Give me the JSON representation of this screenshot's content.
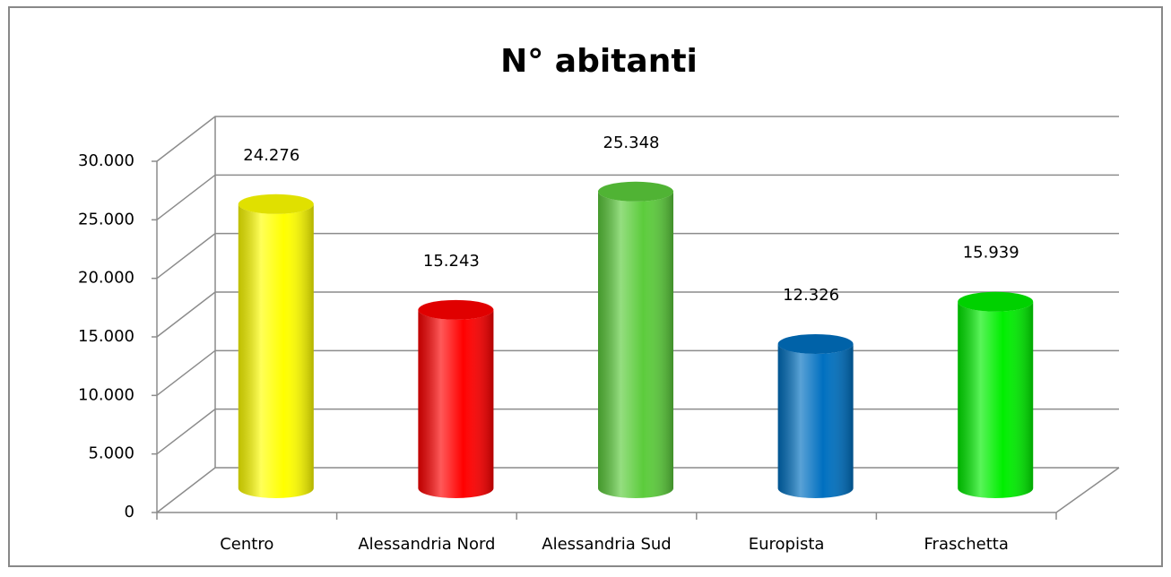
{
  "chart_data": {
    "type": "bar3d",
    "title": "N° abitanti",
    "categories": [
      "Centro",
      "Alessandria Nord",
      "Alessandria Sud",
      "Europista",
      "Fraschetta"
    ],
    "values": [
      24276,
      15243,
      25348,
      12326,
      15939
    ],
    "value_labels": [
      "24.276",
      "15.243",
      "25.348",
      "12.326",
      "15.939"
    ],
    "colors": [
      "#ffff00",
      "#ff0000",
      "#5ccc3c",
      "#0070c0",
      "#00ee00"
    ],
    "ylim": [
      0,
      30000
    ],
    "yticks": [
      0,
      {
        "value": 5000,
        "label": "5.000"
      },
      {
        "value": 10000,
        "label": "10.000"
      },
      {
        "value": 15000,
        "label": "15.000"
      },
      {
        "value": 20000,
        "label": "20.000"
      },
      {
        "value": 25000,
        "label": "25.000"
      },
      {
        "value": 30000,
        "label": "30.000"
      }
    ],
    "grid": true
  }
}
